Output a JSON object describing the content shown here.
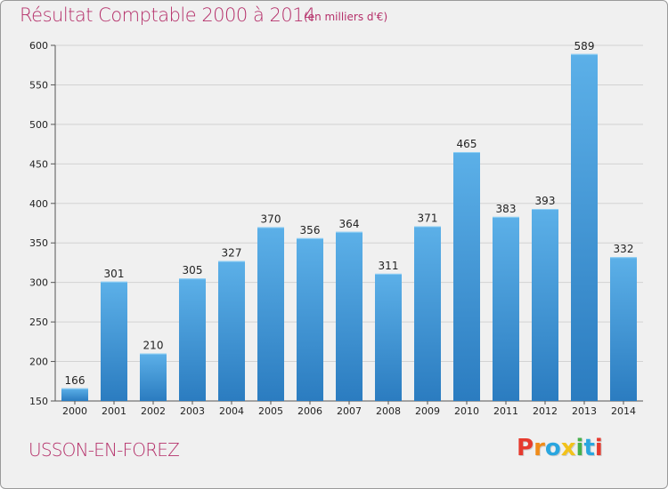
{
  "header": {
    "title": "Résultat Comptable 2000 à 2014",
    "subtitle": "(en milliers d'€)"
  },
  "footer": {
    "city": "USSON-EN-FOREZ",
    "logo_text": "Proxiti",
    "logo_colors": [
      "#e63a2e",
      "#f08c1a",
      "#2aa6df",
      "#f2c21b",
      "#47b04b",
      "#2aa6df",
      "#e63a2e"
    ]
  },
  "chart_data": {
    "type": "bar",
    "title": "Résultat Comptable 2000 à 2014",
    "subtitle": "(en milliers d'€)",
    "xlabel": "",
    "ylabel": "",
    "categories": [
      "2000",
      "2001",
      "2002",
      "2003",
      "2004",
      "2005",
      "2006",
      "2007",
      "2008",
      "2009",
      "2010",
      "2011",
      "2012",
      "2013",
      "2014"
    ],
    "values": [
      166,
      301,
      210,
      305,
      327,
      370,
      356,
      364,
      311,
      371,
      465,
      383,
      393,
      589,
      332
    ],
    "ylim": [
      150,
      600
    ],
    "yticks": [
      150,
      200,
      250,
      300,
      350,
      400,
      450,
      500,
      550,
      600
    ],
    "grid": true,
    "colors": {
      "bar_light": "#5aaee6",
      "bar_dark": "#2f80c4",
      "grid": "#d4d4d4",
      "axis": "#555555"
    }
  }
}
